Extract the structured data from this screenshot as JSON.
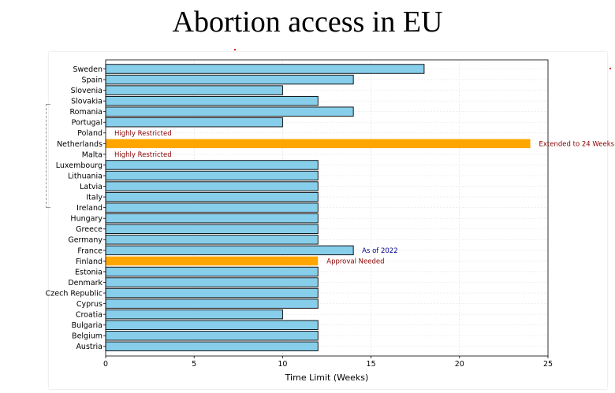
{
  "title": "Abortion access in EU",
  "chart_data": {
    "type": "bar",
    "orientation": "horizontal",
    "title": "",
    "xlabel": "Time Limit (Weeks)",
    "ylabel": "",
    "xlim": [
      0,
      25
    ],
    "xticks": [
      0,
      5,
      10,
      15,
      20,
      25
    ],
    "grid": true,
    "colors": {
      "default": "#87ceeb",
      "highlight": "#ffa500",
      "edge": "#000000"
    },
    "categories": [
      "Sweden",
      "Spain",
      "Slovenia",
      "Slovakia",
      "Romania",
      "Portugal",
      "Poland",
      "Netherlands",
      "Malta",
      "Luxembourg",
      "Lithuania",
      "Latvia",
      "Italy",
      "Ireland",
      "Hungary",
      "Greece",
      "Germany",
      "France",
      "Finland",
      "Estonia",
      "Denmark",
      "Czech Republic",
      "Cyprus",
      "Croatia",
      "Bulgaria",
      "Belgium",
      "Austria"
    ],
    "values": [
      18,
      14,
      10,
      12,
      14,
      10,
      0,
      24,
      0,
      12,
      12,
      12,
      12,
      12,
      12,
      12,
      12,
      14,
      12,
      12,
      12,
      12,
      12,
      10,
      12,
      12,
      12
    ],
    "highlighted": [
      "Netherlands",
      "Finland"
    ],
    "annotations": [
      {
        "category": "Poland",
        "text": "Highly Restricted",
        "color": "#8b0000"
      },
      {
        "category": "Netherlands",
        "text": "Extended to 24 Weeks",
        "color": "#8b0000"
      },
      {
        "category": "Malta",
        "text": "Highly Restricted",
        "color": "#8b0000"
      },
      {
        "category": "France",
        "text": "As of 2022",
        "color": "#00008b"
      },
      {
        "category": "Finland",
        "text": "Approval Needed",
        "color": "#8b0000"
      }
    ]
  }
}
